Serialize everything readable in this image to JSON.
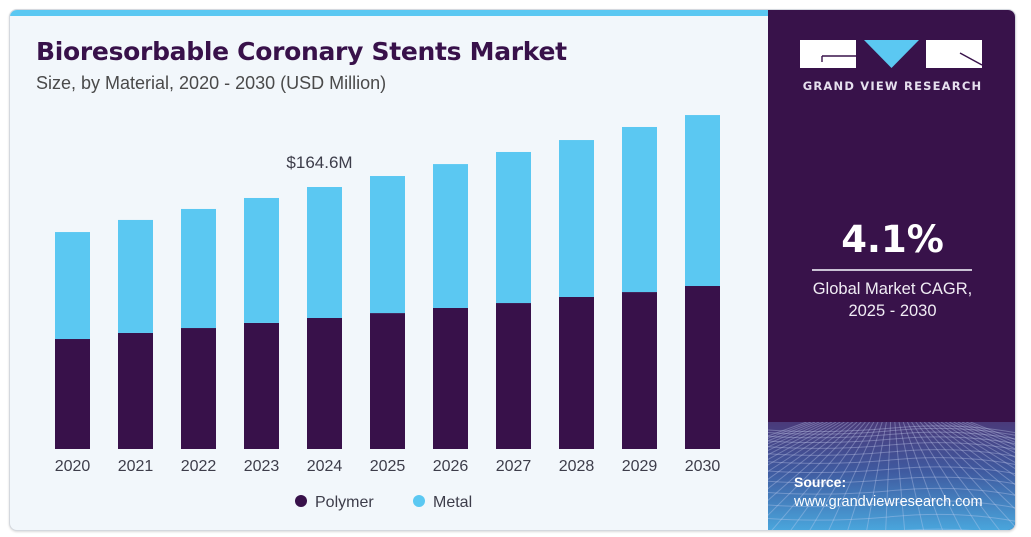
{
  "header": {
    "title": "Bioresorbable Coronary Stents Market",
    "subtitle": "Size, by Material, 2020 - 2030 (USD Million)"
  },
  "colors": {
    "polymer": "#38114a",
    "metal": "#5bc8f2",
    "title": "#38114a",
    "side_panel": "#38124a",
    "accent": "#5bc8f2"
  },
  "chart_data": {
    "type": "bar",
    "stacked": true,
    "title": "Bioresorbable Coronary Stents Market",
    "subtitle": "Size, by Material, 2020 - 2030 (USD Million)",
    "xlabel": "",
    "ylabel": "",
    "categories": [
      "2020",
      "2021",
      "2022",
      "2023",
      "2024",
      "2025",
      "2026",
      "2027",
      "2028",
      "2029",
      "2030"
    ],
    "series": [
      {
        "name": "Polymer",
        "color": "#38114a",
        "values": [
          69.1,
          72.9,
          76.0,
          79.2,
          82.3,
          85.4,
          88.6,
          91.7,
          95.5,
          98.6,
          102.4
        ]
      },
      {
        "name": "Metal",
        "color": "#5bc8f2",
        "values": [
          67.2,
          71.0,
          74.8,
          78.5,
          82.3,
          86.1,
          90.4,
          94.9,
          98.6,
          103.7,
          107.4
        ]
      }
    ],
    "ylim": [
      0,
      215
    ],
    "grid": false,
    "y_axis_visible": false,
    "legend": {
      "position": "bottom",
      "entries": [
        "Polymer",
        "Metal"
      ]
    },
    "annotations": [
      {
        "category": "2024",
        "text": "$164.6M"
      }
    ]
  },
  "sidebar": {
    "brand": "GRAND VIEW RESEARCH",
    "logo_icon": "gvr-logo-icon",
    "cagr_value": "4.1%",
    "cagr_label_line1": "Global Market CAGR,",
    "cagr_label_line2": "2025 - 2030",
    "source_title": "Source:",
    "source_url": "www.grandviewresearch.com"
  }
}
